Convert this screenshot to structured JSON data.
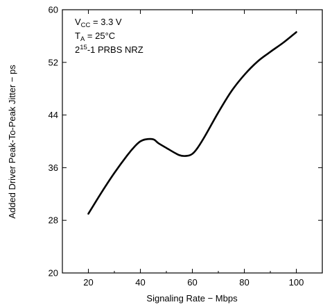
{
  "chart_data": {
    "type": "line",
    "xlabel": "Signaling Rate − Mbps",
    "ylabel": "Added Driver Peak-To-Peak Jitter − ps",
    "xlim": [
      10,
      110
    ],
    "ylim": [
      20,
      60
    ],
    "xticks": [
      20,
      40,
      60,
      80,
      100
    ],
    "yticks": [
      20,
      28,
      36,
      44,
      52,
      60
    ],
    "grid": false,
    "annotations": {
      "vcc": {
        "pre": "V",
        "sub": "CC",
        "post": " = 3.3 V"
      },
      "ta": {
        "pre": "T",
        "sub": "A",
        "post": " = 25°C"
      },
      "prbs": {
        "pre": "2",
        "sup": "15",
        "post": "-1 PRBS NRZ"
      }
    },
    "series": [
      {
        "color": "#000000",
        "x": [
          20,
          25,
          30,
          35,
          38,
          40,
          42,
          45,
          47,
          50,
          55,
          58,
          60,
          62,
          65,
          70,
          75,
          80,
          85,
          90,
          95,
          100
        ],
        "y": [
          29.0,
          32.2,
          35.2,
          37.9,
          39.3,
          40.0,
          40.3,
          40.3,
          39.7,
          39.0,
          37.9,
          37.8,
          38.1,
          39.0,
          40.9,
          44.4,
          47.6,
          50.1,
          52.1,
          53.6,
          55.0,
          56.6
        ]
      }
    ]
  }
}
